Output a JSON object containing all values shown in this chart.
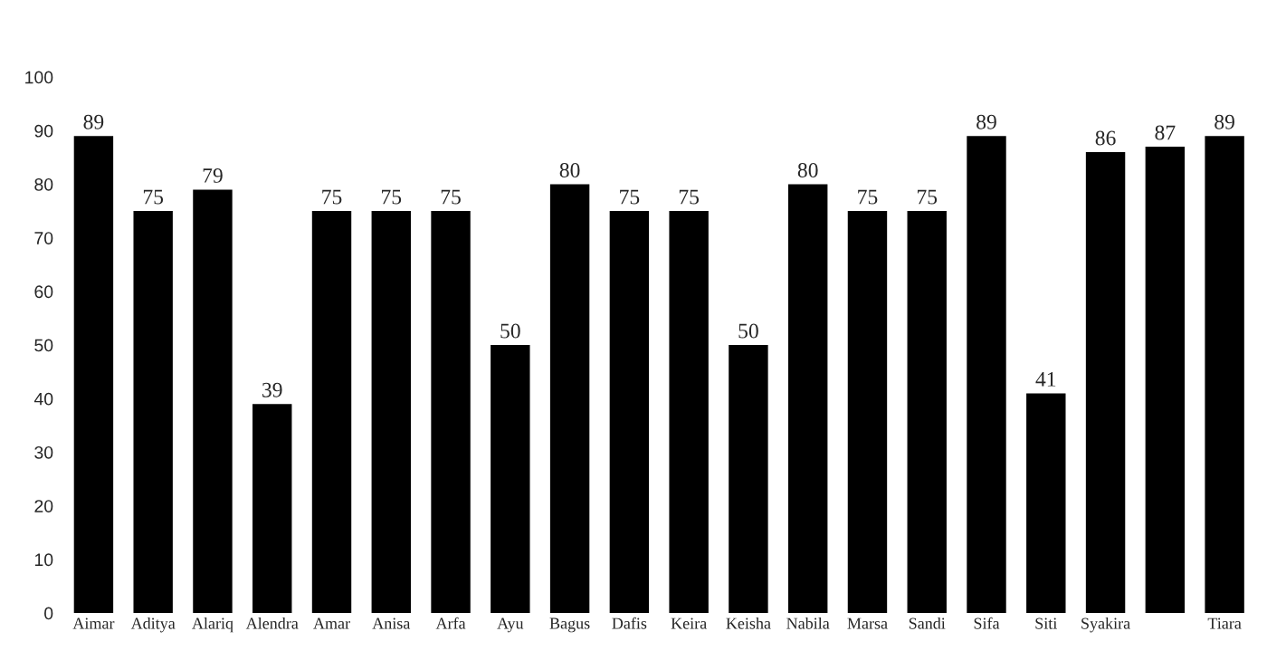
{
  "chart_data": {
    "type": "bar",
    "categories": [
      "Aimar",
      "Aditya",
      "Alariq",
      "Alendra",
      "Amar",
      "Anisa",
      "Arfa",
      "Ayu",
      "Bagus",
      "Dafis",
      "Keira",
      "Keisha",
      "Nabila",
      "Marsa",
      "Sandi",
      "Sifa",
      "Siti",
      "Syakira",
      null,
      "Tiara"
    ],
    "values": [
      89,
      75,
      79,
      39,
      75,
      75,
      75,
      50,
      80,
      75,
      75,
      50,
      80,
      75,
      75,
      89,
      41,
      86,
      87,
      89
    ],
    "color": "#000000",
    "ylim": [
      0,
      100
    ],
    "yticks": [
      0,
      10,
      20,
      30,
      40,
      50,
      60,
      70,
      80,
      90,
      100
    ],
    "data_labels": true,
    "grid": false,
    "legend": false
  }
}
